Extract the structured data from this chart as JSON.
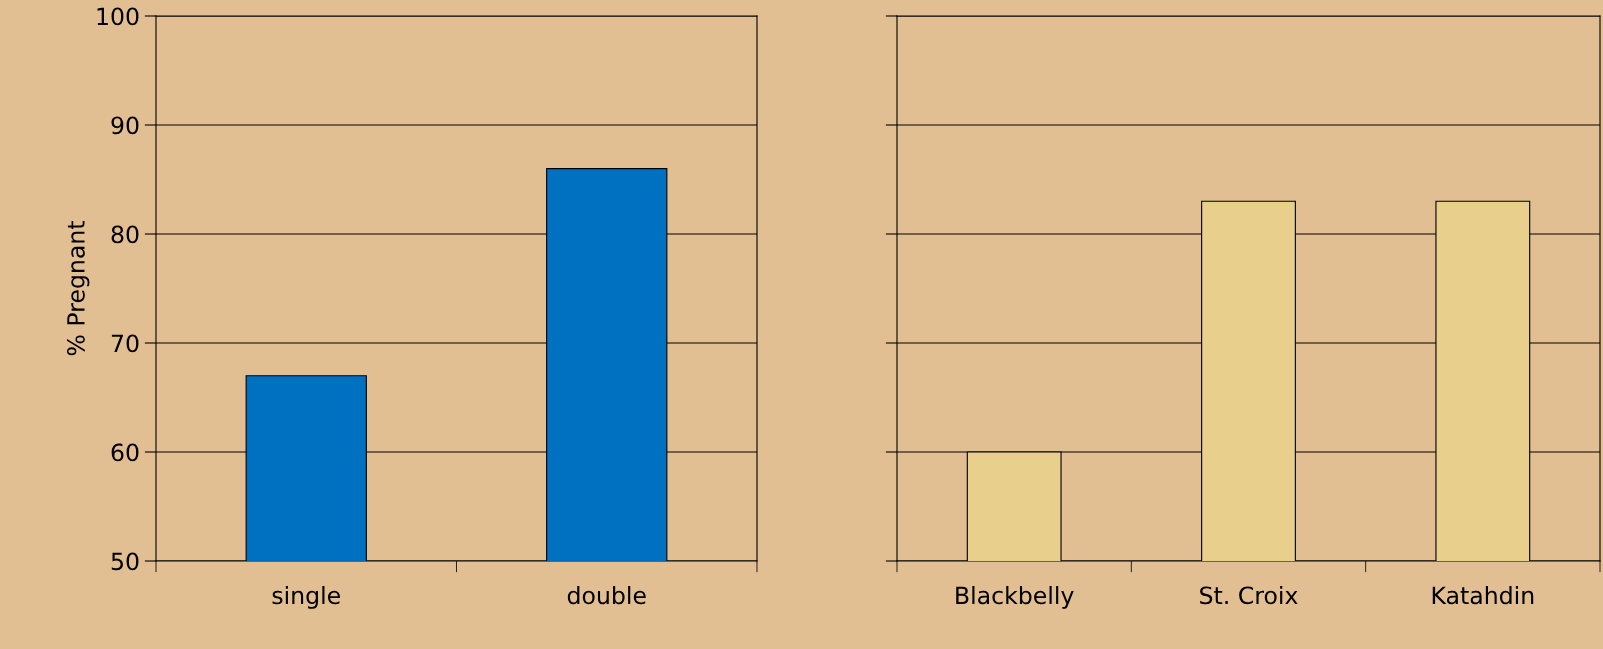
{
  "chart_data": [
    {
      "type": "bar",
      "ylabel": "% Pregnant",
      "categories": [
        "single",
        "double"
      ],
      "values": [
        67,
        86
      ],
      "color": "#0070c0",
      "ylim": [
        50,
        100
      ],
      "yticks": [
        50,
        60,
        70,
        80,
        90,
        100
      ],
      "grid": "y"
    },
    {
      "type": "bar",
      "categories": [
        "Blackbelly",
        "St. Croix",
        "Katahdin"
      ],
      "values": [
        60,
        83,
        83
      ],
      "color": "#e8d08c",
      "ylim": [
        50,
        100
      ],
      "yticks": [
        50,
        60,
        70,
        80,
        90,
        100
      ],
      "grid": "y",
      "tick_labels": "x"
    }
  ]
}
